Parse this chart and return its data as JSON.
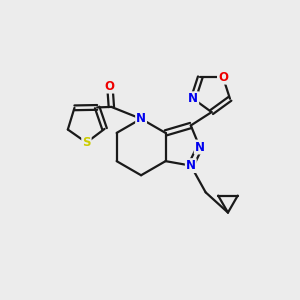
{
  "background_color": "#ececec",
  "bond_color": "#1a1a1a",
  "atom_colors": {
    "N": "#0000ee",
    "O": "#ee0000",
    "S": "#cccc00",
    "C": "#1a1a1a"
  },
  "figsize": [
    3.0,
    3.0
  ],
  "dpi": 100
}
